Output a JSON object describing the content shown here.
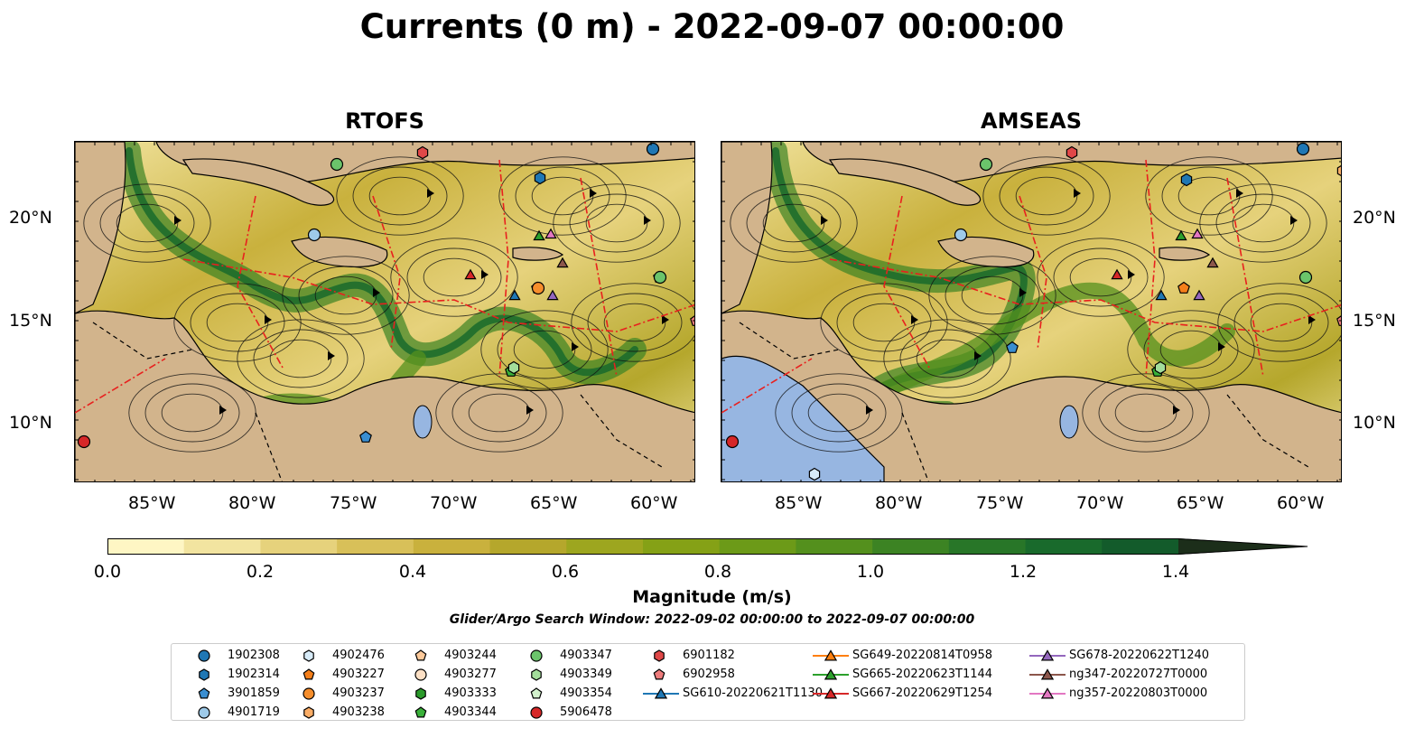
{
  "title": "Currents (0 m) - 2022-09-07 00:00:00",
  "panels": [
    {
      "title": "RTOFS"
    },
    {
      "title": "AMSEAS"
    }
  ],
  "lat_ticks": [
    "20°N",
    "15°N",
    "10°N"
  ],
  "lon_ticks": [
    "85°W",
    "80°W",
    "75°W",
    "70°W",
    "65°W",
    "60°W"
  ],
  "colorbar": {
    "label": "Magnitude (m/s)",
    "ticks": [
      "0.0",
      "0.2",
      "0.4",
      "0.6",
      "0.8",
      "1.0",
      "1.2",
      "1.4"
    ],
    "colors": [
      "#fef6c4",
      "#f2e4a0",
      "#e6d27c",
      "#d8c059",
      "#c9b13d",
      "#b5a72c",
      "#9da61f",
      "#85a116",
      "#6c9a18",
      "#54901d",
      "#3c8323",
      "#287628",
      "#196a2c",
      "#135b2b",
      "#164c26",
      "#1a3d20",
      "#1c2e1a"
    ]
  },
  "search_window": "Glider/Argo Search Window: 2022-09-02 00:00:00 to 2022-09-07 00:00:00",
  "colors": {
    "land": "#d2b48c",
    "ocean_pacific": "#97b6e1",
    "eez": "#e8201e"
  },
  "legend": [
    {
      "label": "1902308",
      "shape": "circle",
      "color": "#1f77b4"
    },
    {
      "label": "1902314",
      "shape": "hexagon",
      "color": "#1f77b4"
    },
    {
      "label": "3901859",
      "shape": "pentagon",
      "color": "#3a8ed1"
    },
    {
      "label": "4901719",
      "shape": "circle",
      "color": "#9ecae9"
    },
    {
      "label": "4902476",
      "shape": "hexagon",
      "color": "#d7ebf8"
    },
    {
      "label": "4903227",
      "shape": "pentagon",
      "color": "#f57f1a"
    },
    {
      "label": "4903237",
      "shape": "circle",
      "color": "#f68e2c"
    },
    {
      "label": "4903238",
      "shape": "hexagon",
      "color": "#fbad66"
    },
    {
      "label": "4903244",
      "shape": "pentagon",
      "color": "#fcc99a"
    },
    {
      "label": "4903277",
      "shape": "circle",
      "color": "#fde0c5"
    },
    {
      "label": "4903333",
      "shape": "hexagon",
      "color": "#2a9a2a"
    },
    {
      "label": "4903344",
      "shape": "pentagon",
      "color": "#39b039"
    },
    {
      "label": "4903347",
      "shape": "circle",
      "color": "#6bc46b"
    },
    {
      "label": "4903349",
      "shape": "hexagon",
      "color": "#a3dd9b"
    },
    {
      "label": "4903354",
      "shape": "pentagon",
      "color": "#d2f1cc"
    },
    {
      "label": "5906478",
      "shape": "circle",
      "color": "#d62728"
    },
    {
      "label": "6901182",
      "shape": "hexagon",
      "color": "#e04848"
    },
    {
      "label": "6902958",
      "shape": "pentagon",
      "color": "#ee7c7c"
    },
    {
      "label": "SG610-20220621T1130",
      "shape": "triangle",
      "color": "#1f77b4"
    },
    {
      "label": "SG649-20220814T0958",
      "shape": "triangle",
      "color": "#ff7f0e"
    },
    {
      "label": "SG665-20220623T1144",
      "shape": "triangle",
      "color": "#2ca02c"
    },
    {
      "label": "SG667-20220629T1254",
      "shape": "triangle",
      "color": "#d62728"
    },
    {
      "label": "SG678-20220622T1240",
      "shape": "triangle",
      "color": "#9467bd"
    },
    {
      "label": "ng347-20220727T0000",
      "shape": "triangle",
      "color": "#8c564b"
    },
    {
      "label": "ng357-20220803T0000",
      "shape": "triangle",
      "color": "#e377c2"
    }
  ]
}
